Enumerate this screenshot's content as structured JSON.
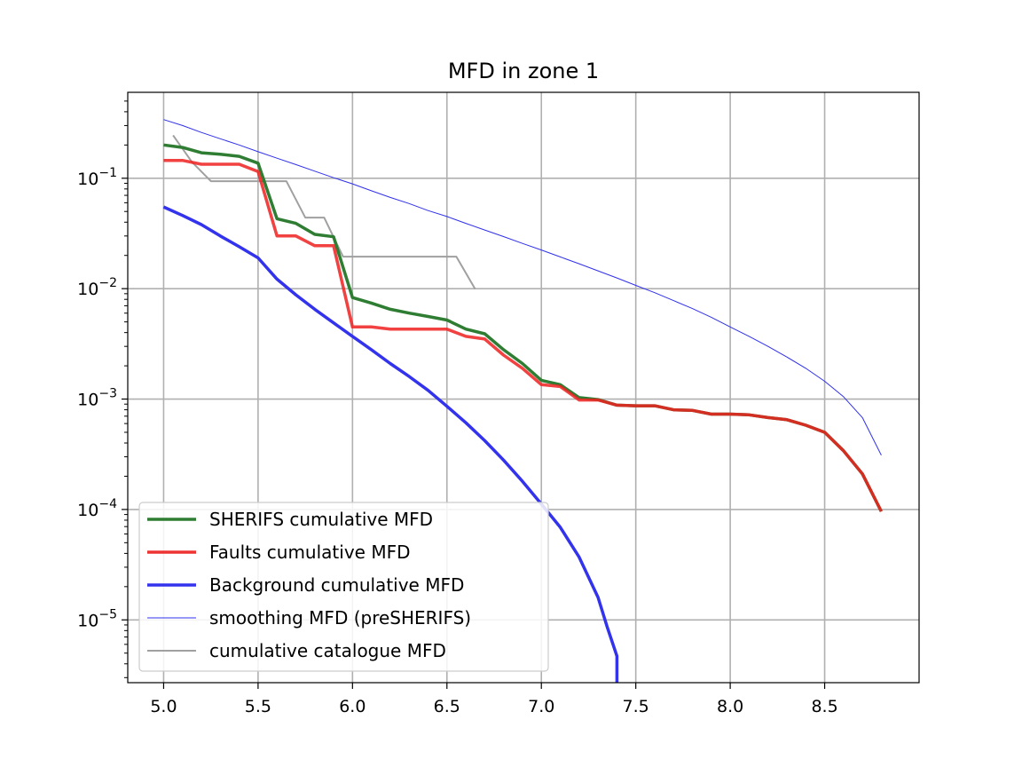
{
  "chart_data": {
    "type": "line",
    "title": "MFD in zone 1",
    "xlabel": "",
    "ylabel": "",
    "xlim": [
      4.81,
      9.0
    ],
    "ylim": [
      2.7e-06,
      0.6
    ],
    "yscale": "log",
    "grid": true,
    "legend_position": "lower-left",
    "xticks": [
      {
        "value": 5.0,
        "label": "5.0"
      },
      {
        "value": 5.5,
        "label": "5.5"
      },
      {
        "value": 6.0,
        "label": "6.0"
      },
      {
        "value": 6.5,
        "label": "6.5"
      },
      {
        "value": 7.0,
        "label": "7.0"
      },
      {
        "value": 7.5,
        "label": "7.5"
      },
      {
        "value": 8.0,
        "label": "8.0"
      },
      {
        "value": 8.5,
        "label": "8.5"
      }
    ],
    "yticks": [
      {
        "value": 0.1,
        "base": "10",
        "exp": "−1"
      },
      {
        "value": 0.01,
        "base": "10",
        "exp": "−2"
      },
      {
        "value": 0.001,
        "base": "10",
        "exp": "−3"
      },
      {
        "value": 0.0001,
        "base": "10",
        "exp": "−4"
      },
      {
        "value": 1e-05,
        "base": "10",
        "exp": "−5"
      }
    ],
    "series": [
      {
        "name": "smoothing MFD (preSHERIFS)",
        "color": "#3030ee",
        "width": 1,
        "x": [
          5.0,
          5.1,
          5.2,
          5.3,
          5.4,
          5.5,
          5.6,
          5.7,
          5.8,
          5.9,
          6.0,
          6.1,
          6.2,
          6.3,
          6.4,
          6.5,
          6.6,
          6.7,
          6.8,
          6.9,
          7.0,
          7.1,
          7.2,
          7.3,
          7.4,
          7.5,
          7.6,
          7.7,
          7.8,
          7.9,
          8.0,
          8.1,
          8.2,
          8.3,
          8.4,
          8.5,
          8.6,
          8.7,
          8.8
        ],
        "y": [
          0.34,
          0.3,
          0.26,
          0.228,
          0.2,
          0.174,
          0.152,
          0.133,
          0.116,
          0.101,
          0.089,
          0.077,
          0.067,
          0.059,
          0.051,
          0.045,
          0.039,
          0.034,
          0.0296,
          0.0257,
          0.0224,
          0.0194,
          0.0168,
          0.0145,
          0.0125,
          0.0107,
          0.0092,
          0.0078,
          0.0066,
          0.0055,
          0.0045,
          0.0037,
          0.003,
          0.0024,
          0.0019,
          0.00145,
          0.00105,
          0.00068,
          0.00031
        ]
      },
      {
        "name": "cumulative catalogue MFD",
        "color": "#a0a0a0",
        "width": 2,
        "x": [
          5.05,
          5.15,
          5.25,
          5.35,
          5.45,
          5.55,
          5.65,
          5.75,
          5.85,
          5.95,
          6.05,
          6.15,
          6.25,
          6.35,
          6.45,
          6.55,
          6.65
        ],
        "y": [
          0.245,
          0.14,
          0.094,
          0.094,
          0.094,
          0.094,
          0.094,
          0.044,
          0.044,
          0.0195,
          0.0195,
          0.0195,
          0.0195,
          0.0195,
          0.0195,
          0.0195,
          0.0099
        ]
      },
      {
        "name": "Background cumulative MFD",
        "color": "#3333ee",
        "width": 3.5,
        "x": [
          5.0,
          5.1,
          5.2,
          5.3,
          5.4,
          5.5,
          5.6,
          5.7,
          5.8,
          5.9,
          6.0,
          6.1,
          6.2,
          6.3,
          6.4,
          6.5,
          6.6,
          6.7,
          6.8,
          6.9,
          7.0,
          7.1,
          7.2,
          7.3,
          7.35,
          7.4,
          7.4
        ],
        "y": [
          0.055,
          0.046,
          0.038,
          0.03,
          0.024,
          0.019,
          0.0122,
          0.0088,
          0.0065,
          0.0049,
          0.0037,
          0.0028,
          0.0021,
          0.0016,
          0.0012,
          0.00086,
          0.00061,
          0.00042,
          0.00028,
          0.00018,
          0.000112,
          6.9e-05,
          3.7e-05,
          1.6e-05,
          8.5e-06,
          4.7e-06,
          2.7e-06
        ]
      },
      {
        "name": "SHERIFS cumulative MFD",
        "color": "#2e7d32",
        "width": 3.5,
        "x": [
          5.0,
          5.1,
          5.2,
          5.3,
          5.4,
          5.5,
          5.6,
          5.7,
          5.8,
          5.9,
          6.0,
          6.1,
          6.2,
          6.3,
          6.4,
          6.5,
          6.6,
          6.7,
          6.8,
          6.9,
          7.0,
          7.1,
          7.2,
          7.3,
          7.4,
          7.5,
          7.6,
          7.7,
          7.8,
          7.9,
          8.0,
          8.1,
          8.2,
          8.3,
          8.4,
          8.5,
          8.6,
          8.7,
          8.8
        ],
        "y": [
          0.2,
          0.19,
          0.17,
          0.165,
          0.158,
          0.137,
          0.043,
          0.039,
          0.031,
          0.0295,
          0.0083,
          0.0074,
          0.0065,
          0.006,
          0.0056,
          0.0052,
          0.0043,
          0.0039,
          0.0028,
          0.0021,
          0.00148,
          0.00135,
          0.00103,
          0.00099,
          0.00088,
          0.00087,
          0.00087,
          0.0008,
          0.00079,
          0.00073,
          0.00073,
          0.00072,
          0.00068,
          0.00065,
          0.00058,
          0.0005,
          0.00034,
          0.00021,
          9.6e-05
        ]
      },
      {
        "name": "Faults cumulative MFD",
        "color": "#ee2020",
        "width": 3.5,
        "opacity": 0.85,
        "x": [
          5.0,
          5.1,
          5.2,
          5.3,
          5.4,
          5.5,
          5.6,
          5.7,
          5.8,
          5.9,
          6.0,
          6.1,
          6.2,
          6.3,
          6.4,
          6.5,
          6.6,
          6.7,
          6.8,
          6.9,
          7.0,
          7.1,
          7.2,
          7.3,
          7.4,
          7.5,
          7.6,
          7.7,
          7.8,
          7.9,
          8.0,
          8.1,
          8.2,
          8.3,
          8.4,
          8.5,
          8.6,
          8.7,
          8.8
        ],
        "y": [
          0.145,
          0.145,
          0.134,
          0.134,
          0.134,
          0.115,
          0.03,
          0.03,
          0.0245,
          0.0245,
          0.0045,
          0.0045,
          0.0043,
          0.0043,
          0.0043,
          0.0043,
          0.0037,
          0.0035,
          0.0025,
          0.0019,
          0.00135,
          0.0013,
          0.00098,
          0.00098,
          0.00088,
          0.00087,
          0.00087,
          0.0008,
          0.00079,
          0.00073,
          0.00073,
          0.00072,
          0.00068,
          0.00065,
          0.00058,
          0.0005,
          0.00034,
          0.00021,
          9.6e-05
        ]
      }
    ],
    "legend": [
      {
        "label": "SHERIFS cumulative MFD",
        "color": "#2e7d32",
        "width": 3.5
      },
      {
        "label": "Faults cumulative MFD",
        "color": "#ee3333",
        "width": 3.5
      },
      {
        "label": "Background cumulative MFD",
        "color": "#3333ee",
        "width": 3.5
      },
      {
        "label": "smoothing MFD (preSHERIFS)",
        "color": "#3030ee",
        "width": 1
      },
      {
        "label": "cumulative catalogue MFD",
        "color": "#a0a0a0",
        "width": 2
      }
    ]
  }
}
